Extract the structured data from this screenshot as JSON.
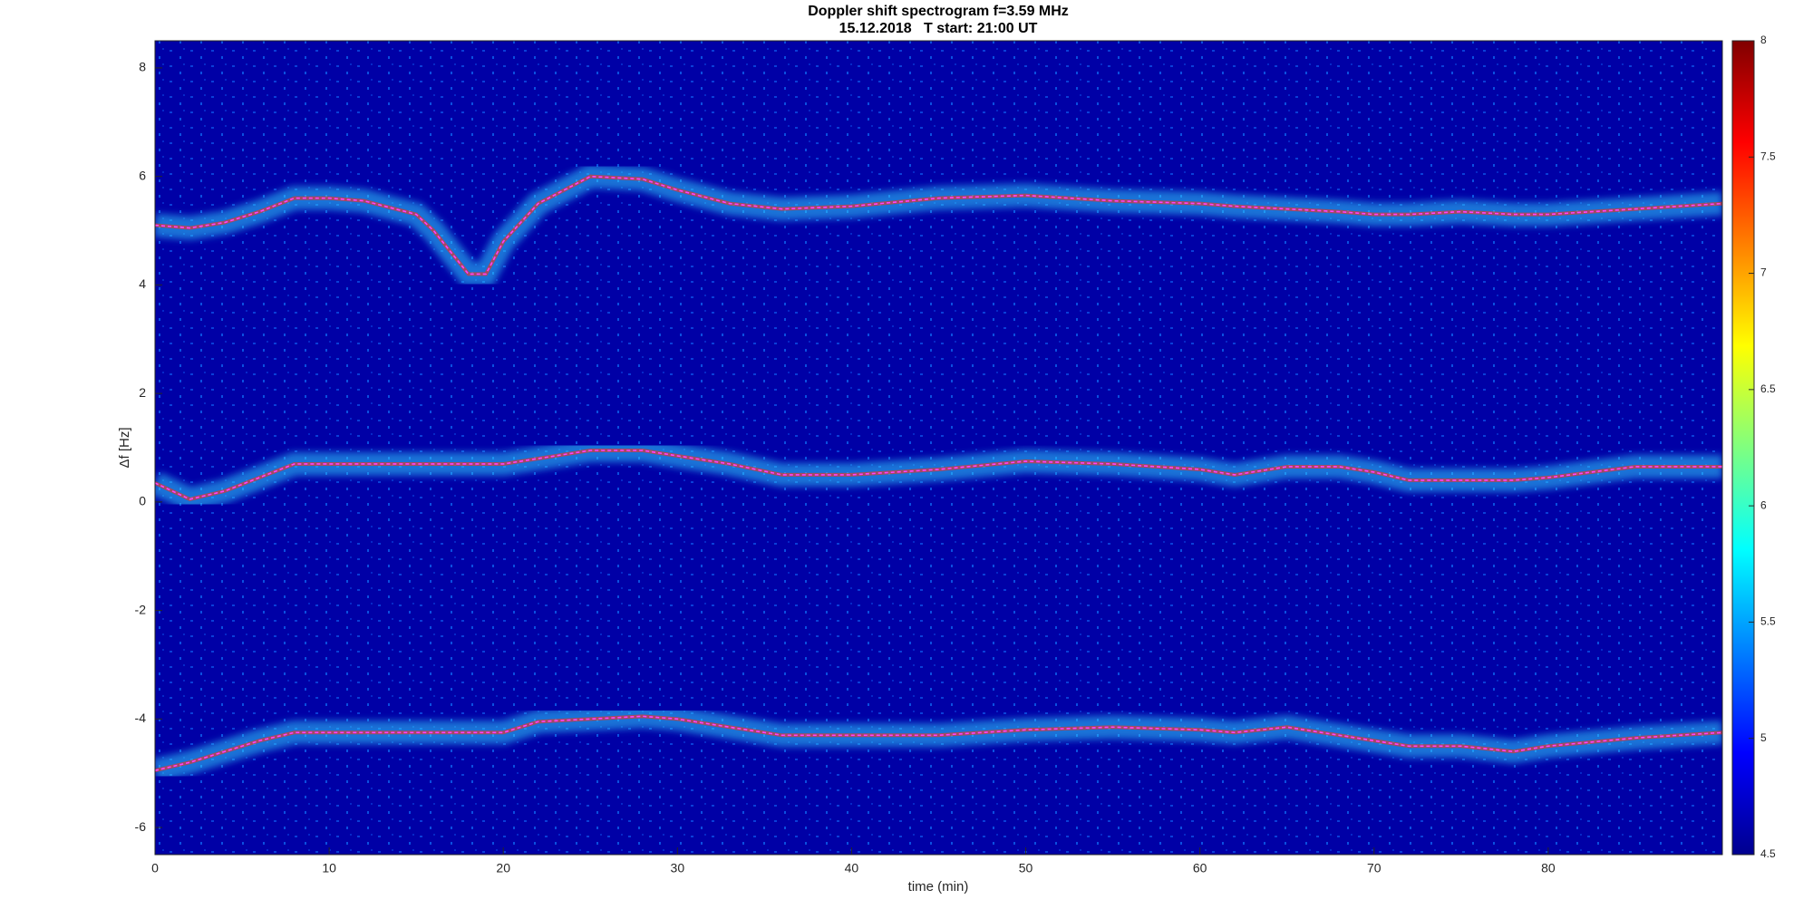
{
  "chart_data": {
    "type": "line",
    "title": "Doppler shift spectrogram f=3.59 MHz",
    "subtitle": "15.12.2018   T start: 21:00 UT",
    "x_label": "time (min)",
    "y_label": "Δf [Hz]",
    "x": [
      0,
      2,
      4,
      6,
      8,
      10,
      12,
      15,
      16,
      18,
      19,
      20,
      22,
      25,
      28,
      30,
      33,
      36,
      40,
      45,
      50,
      55,
      60,
      62,
      65,
      68,
      70,
      72,
      75,
      78,
      80,
      85,
      90
    ],
    "series": [
      {
        "color": "#ff40ff",
        "values": [
          5.1,
          5.05,
          5.15,
          5.35,
          5.6,
          5.6,
          5.55,
          5.3,
          5.0,
          4.2,
          4.2,
          4.8,
          5.5,
          6.0,
          5.95,
          5.75,
          5.5,
          5.4,
          5.45,
          5.6,
          5.65,
          5.55,
          5.5,
          5.45,
          5.4,
          5.35,
          5.3,
          5.3,
          5.35,
          5.3,
          5.3,
          5.4,
          5.5
        ]
      },
      {
        "color": "#ff40ff",
        "values": [
          0.35,
          0.05,
          0.2,
          0.45,
          0.7,
          0.7,
          0.7,
          0.7,
          0.7,
          0.7,
          0.7,
          0.7,
          0.8,
          0.95,
          0.95,
          0.85,
          0.7,
          0.5,
          0.5,
          0.6,
          0.75,
          0.7,
          0.6,
          0.5,
          0.65,
          0.65,
          0.55,
          0.4,
          0.4,
          0.4,
          0.45,
          0.65,
          0.65
        ]
      },
      {
        "color": "#ff40ff",
        "values": [
          -4.95,
          -4.8,
          -4.6,
          -4.4,
          -4.25,
          -4.25,
          -4.25,
          -4.25,
          -4.25,
          -4.25,
          -4.25,
          -4.25,
          -4.05,
          -4.0,
          -3.95,
          -4.0,
          -4.15,
          -4.3,
          -4.3,
          -4.3,
          -4.2,
          -4.15,
          -4.2,
          -4.25,
          -4.15,
          -4.3,
          -4.4,
          -4.5,
          -4.5,
          -4.6,
          -4.5,
          -4.35,
          -4.25
        ]
      }
    ],
    "xlim": [
      0,
      90
    ],
    "xticks": [
      0,
      10,
      20,
      30,
      40,
      50,
      60,
      70,
      80
    ],
    "ylim": [
      -6.5,
      8.5
    ],
    "yticks": [
      -6,
      -4,
      -2,
      0,
      2,
      4,
      6,
      8
    ],
    "colorbar": {
      "lim": [
        4.5,
        8
      ],
      "ticks": [
        4.5,
        5,
        5.5,
        6,
        6.5,
        7,
        7.5,
        8
      ]
    },
    "grid": false
  }
}
